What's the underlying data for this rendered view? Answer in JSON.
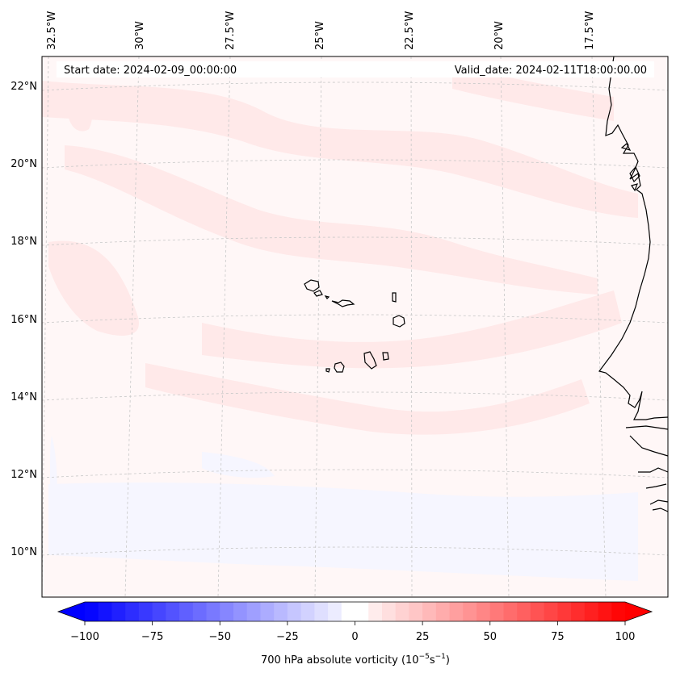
{
  "map": {
    "start_label": "Start date: 2024-02-09_00:00:00",
    "valid_label": "Valid_date: 2024-02-11T18:00:00.00",
    "lon_labels": [
      "32.5°W",
      "30°W",
      "27.5°W",
      "25°W",
      "22.5°W",
      "20°W",
      "17.5°W"
    ],
    "lat_labels": [
      "22°N",
      "20°N",
      "18°N",
      "16°N",
      "14°N",
      "12°N",
      "10°N"
    ]
  },
  "colorbar": {
    "label": "700 hPa absolute vorticity (10",
    "label_exp1": "−5",
    "label_mid": "s",
    "label_exp2": "−1",
    "label_end": ")",
    "ticks": [
      "−100",
      "−75",
      "−50",
      "−25",
      "0",
      "25",
      "50",
      "75",
      "100"
    ],
    "min": -100,
    "max": 100,
    "step": 5
  },
  "colors": {
    "coast": "#000000",
    "grid": "#c8c8c8",
    "field_base": "#fff7f7",
    "field_pos": "#ffe9e9",
    "field_neg": "#f6f6ff"
  }
}
